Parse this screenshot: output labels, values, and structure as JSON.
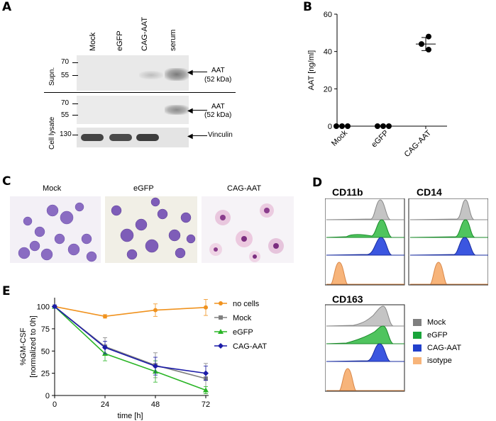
{
  "panel_letters": {
    "a": "A",
    "b": "B",
    "c": "C",
    "d": "D",
    "e": "E"
  },
  "panel_a": {
    "lanes": [
      "Mock",
      "eGFP",
      "CAG-AAT",
      "serum"
    ],
    "supn_label": "Supn.",
    "lysate_label": "Cell lysate",
    "supn_markers": [
      "70",
      "55"
    ],
    "lysate_markers": [
      "70",
      "55"
    ],
    "vinculin_marker": "130",
    "aat_label": "AAT",
    "aat_kda": "(52 kDa)",
    "vinculin_label": "Vinculin"
  },
  "panel_c": {
    "titles": [
      "Mock",
      "eGFP",
      "CAG-AAT"
    ]
  },
  "panel_d": {
    "titles": [
      "CD11b",
      "CD14",
      "CD163"
    ],
    "legend": [
      {
        "label": "Mock",
        "color": "#7f7f7f"
      },
      {
        "label": "eGFP",
        "color": "#19a43a"
      },
      {
        "label": "CAG-AAT",
        "color": "#2140cc"
      },
      {
        "label": "isotype",
        "color": "#f7b47a"
      }
    ]
  },
  "chart_data": [
    {
      "type": "scatter",
      "panel": "B",
      "ylabel": "AAT [ng/ml]",
      "ylim": [
        0,
        60
      ],
      "yticks": [
        0,
        20,
        40,
        60
      ],
      "categories": [
        "Mock",
        "eGFP",
        "CAG-AAT"
      ],
      "points": [
        [
          0,
          0,
          0
        ],
        [
          0,
          0,
          0
        ],
        [
          48,
          44,
          41
        ]
      ],
      "mean": [
        0,
        0,
        44
      ],
      "sd": [
        0,
        0,
        3.5
      ],
      "color": "#000000"
    },
    {
      "type": "line",
      "panel": "E",
      "xlabel": "time [h]",
      "ylabel": "%GM-CSF",
      "ylabel2": "[normalized to 0h]",
      "x": [
        0,
        24,
        48,
        72
      ],
      "xticks": [
        0,
        24,
        48,
        72
      ],
      "ylim": [
        0,
        110
      ],
      "yticks": [
        0,
        25,
        50,
        75,
        100
      ],
      "series": [
        {
          "name": "no cells",
          "color": "#f0921e",
          "marker": "circle",
          "values": [
            100,
            89,
            96,
            99
          ],
          "err": [
            0,
            2,
            7,
            9
          ]
        },
        {
          "name": "Mock",
          "color": "#808080",
          "marker": "square",
          "values": [
            100,
            55,
            34,
            19
          ],
          "err": [
            0,
            10,
            14,
            17
          ]
        },
        {
          "name": "eGFP",
          "color": "#2ab526",
          "marker": "triangle",
          "values": [
            100,
            47,
            27,
            6
          ],
          "err": [
            0,
            8,
            12,
            4
          ]
        },
        {
          "name": "CAG-AAT",
          "color": "#1c1ca8",
          "marker": "diamond",
          "values": [
            100,
            54,
            33,
            25
          ],
          "err": [
            0,
            7,
            10,
            8
          ]
        }
      ],
      "legend_position": "right"
    }
  ]
}
